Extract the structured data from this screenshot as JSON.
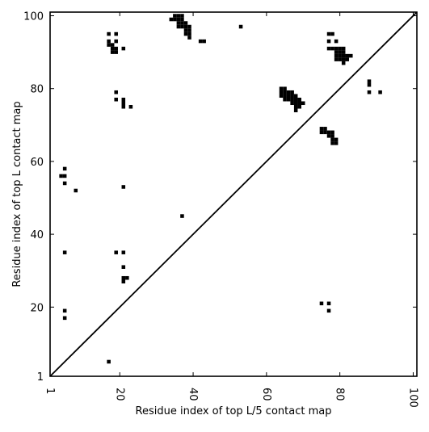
{
  "chart_data": {
    "type": "scatter",
    "marker": "square",
    "marker_color": "#000000",
    "xlabel": "Residue index of top L/5 contact map",
    "ylabel": "Residue index of top L contact map",
    "xlim": [
      1,
      101
    ],
    "ylim": [
      1,
      101
    ],
    "xticks": [
      1,
      20,
      40,
      60,
      80,
      100
    ],
    "yticks": [
      1,
      20,
      40,
      60,
      80,
      100
    ],
    "xtick_rotation_deg": -90,
    "diagonal_line": true,
    "grid": false,
    "points": [
      [
        36,
        100
      ],
      [
        35,
        100
      ],
      [
        37,
        100
      ],
      [
        34,
        99
      ],
      [
        35,
        99
      ],
      [
        36,
        99
      ],
      [
        37,
        99
      ],
      [
        36,
        98
      ],
      [
        37,
        98
      ],
      [
        38,
        98
      ],
      [
        36,
        97
      ],
      [
        37,
        97
      ],
      [
        38,
        97
      ],
      [
        39,
        97
      ],
      [
        38,
        96
      ],
      [
        39,
        96
      ],
      [
        38,
        95
      ],
      [
        39,
        95
      ],
      [
        39,
        94
      ],
      [
        42,
        93
      ],
      [
        43,
        93
      ],
      [
        53,
        97
      ],
      [
        17,
        95
      ],
      [
        19,
        95
      ],
      [
        17,
        93
      ],
      [
        19,
        93
      ],
      [
        17,
        92
      ],
      [
        18,
        92
      ],
      [
        18,
        91
      ],
      [
        19,
        91
      ],
      [
        21,
        91
      ],
      [
        18,
        90
      ],
      [
        19,
        90
      ],
      [
        77,
        95
      ],
      [
        78,
        95
      ],
      [
        77,
        93
      ],
      [
        79,
        93
      ],
      [
        77,
        91
      ],
      [
        78,
        91
      ],
      [
        79,
        91
      ],
      [
        80,
        91
      ],
      [
        81,
        91
      ],
      [
        79,
        90
      ],
      [
        80,
        90
      ],
      [
        81,
        90
      ],
      [
        79,
        89
      ],
      [
        80,
        89
      ],
      [
        81,
        89
      ],
      [
        82,
        89
      ],
      [
        83,
        89
      ],
      [
        79,
        88
      ],
      [
        80,
        88
      ],
      [
        81,
        88
      ],
      [
        82,
        88
      ],
      [
        81,
        87
      ],
      [
        88,
        82
      ],
      [
        88,
        81
      ],
      [
        88,
        79
      ],
      [
        91,
        79
      ],
      [
        64,
        80
      ],
      [
        65,
        80
      ],
      [
        64,
        79
      ],
      [
        65,
        79
      ],
      [
        66,
        79
      ],
      [
        67,
        79
      ],
      [
        64,
        78
      ],
      [
        65,
        78
      ],
      [
        66,
        78
      ],
      [
        67,
        78
      ],
      [
        68,
        78
      ],
      [
        65,
        77
      ],
      [
        66,
        77
      ],
      [
        67,
        77
      ],
      [
        68,
        77
      ],
      [
        69,
        77
      ],
      [
        67,
        76
      ],
      [
        68,
        76
      ],
      [
        69,
        76
      ],
      [
        70,
        76
      ],
      [
        68,
        75
      ],
      [
        69,
        75
      ],
      [
        68,
        74
      ],
      [
        19,
        79
      ],
      [
        19,
        77
      ],
      [
        21,
        77
      ],
      [
        21,
        76
      ],
      [
        21,
        75
      ],
      [
        23,
        75
      ],
      [
        75,
        69
      ],
      [
        76,
        69
      ],
      [
        75,
        68
      ],
      [
        76,
        68
      ],
      [
        77,
        68
      ],
      [
        78,
        68
      ],
      [
        77,
        67
      ],
      [
        78,
        67
      ],
      [
        78,
        66
      ],
      [
        79,
        66
      ],
      [
        78,
        65
      ],
      [
        79,
        65
      ],
      [
        5,
        58
      ],
      [
        4,
        56
      ],
      [
        5,
        56
      ],
      [
        5,
        54
      ],
      [
        8,
        52
      ],
      [
        21,
        53
      ],
      [
        37,
        45
      ],
      [
        5,
        35
      ],
      [
        19,
        35
      ],
      [
        21,
        35
      ],
      [
        21,
        31
      ],
      [
        21,
        28
      ],
      [
        22,
        28
      ],
      [
        21,
        27
      ],
      [
        75,
        21
      ],
      [
        77,
        21
      ],
      [
        77,
        19
      ],
      [
        5,
        19
      ],
      [
        5,
        17
      ],
      [
        17,
        5
      ]
    ]
  }
}
